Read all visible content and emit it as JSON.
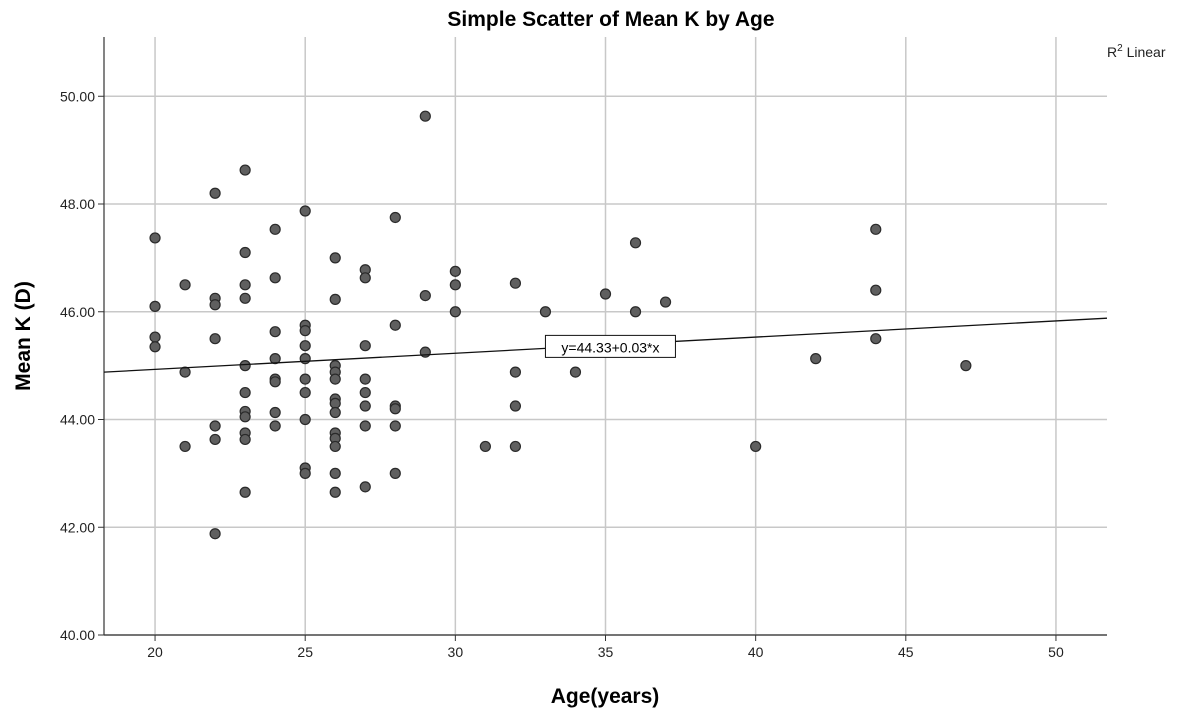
{
  "chart_data": {
    "type": "scatter",
    "title": "Simple Scatter of Mean K by Age",
    "xlabel": "Age(years)",
    "ylabel": "Mean K (D)",
    "xlim": [
      18.3,
      51.7
    ],
    "ylim": [
      40.0,
      51.1
    ],
    "x_ticks": [
      20,
      25,
      30,
      35,
      40,
      45,
      50
    ],
    "y_ticks": [
      "40.00",
      "42.00",
      "44.00",
      "46.00",
      "48.00",
      "50.00"
    ],
    "grid": true,
    "legend": {
      "label_main": "R",
      "label_sup": "2",
      "label_rest": " Linear",
      "placement": "top-right"
    },
    "fit_line": {
      "intercept": 44.33,
      "slope": 0.03,
      "label": "y=44.33+0.03*x",
      "label_x": 33.0
    },
    "point_color": "#5f5f5f",
    "points": [
      [
        20,
        47.37
      ],
      [
        20,
        46.1
      ],
      [
        20,
        45.53
      ],
      [
        20,
        45.35
      ],
      [
        21,
        46.5
      ],
      [
        21,
        44.88
      ],
      [
        21,
        43.5
      ],
      [
        22,
        48.2
      ],
      [
        22,
        46.25
      ],
      [
        22,
        46.13
      ],
      [
        22,
        45.5
      ],
      [
        22,
        43.88
      ],
      [
        22,
        43.63
      ],
      [
        22,
        41.88
      ],
      [
        23,
        48.63
      ],
      [
        23,
        47.1
      ],
      [
        23,
        46.5
      ],
      [
        23,
        46.25
      ],
      [
        23,
        45.0
      ],
      [
        23,
        44.5
      ],
      [
        23,
        44.15
      ],
      [
        23,
        44.05
      ],
      [
        23,
        43.75
      ],
      [
        23,
        43.63
      ],
      [
        23,
        42.65
      ],
      [
        24,
        47.53
      ],
      [
        24,
        46.63
      ],
      [
        24,
        45.63
      ],
      [
        24,
        45.13
      ],
      [
        24,
        44.75
      ],
      [
        24,
        44.7
      ],
      [
        24,
        44.13
      ],
      [
        24,
        43.88
      ],
      [
        25,
        47.87
      ],
      [
        25,
        45.75
      ],
      [
        25,
        45.65
      ],
      [
        25,
        45.37
      ],
      [
        25,
        45.13
      ],
      [
        25,
        44.75
      ],
      [
        25,
        44.5
      ],
      [
        25,
        44.0
      ],
      [
        25,
        43.1
      ],
      [
        25,
        43.0
      ],
      [
        26,
        47.0
      ],
      [
        26,
        46.23
      ],
      [
        26,
        45.0
      ],
      [
        26,
        44.88
      ],
      [
        26,
        44.75
      ],
      [
        26,
        44.38
      ],
      [
        26,
        44.3
      ],
      [
        26,
        44.13
      ],
      [
        26,
        43.75
      ],
      [
        26,
        43.65
      ],
      [
        26,
        43.5
      ],
      [
        26,
        43.0
      ],
      [
        26,
        42.65
      ],
      [
        27,
        46.78
      ],
      [
        27,
        46.63
      ],
      [
        27,
        45.37
      ],
      [
        27,
        44.75
      ],
      [
        27,
        44.5
      ],
      [
        27,
        44.25
      ],
      [
        27,
        43.88
      ],
      [
        27,
        42.75
      ],
      [
        28,
        47.75
      ],
      [
        28,
        45.75
      ],
      [
        28,
        44.25
      ],
      [
        28,
        44.2
      ],
      [
        28,
        43.88
      ],
      [
        28,
        43.0
      ],
      [
        29,
        49.63
      ],
      [
        29,
        46.3
      ],
      [
        29,
        45.25
      ],
      [
        30,
        46.75
      ],
      [
        30,
        46.5
      ],
      [
        30,
        46.0
      ],
      [
        31,
        43.5
      ],
      [
        32,
        46.53
      ],
      [
        32,
        44.88
      ],
      [
        32,
        44.25
      ],
      [
        32,
        43.5
      ],
      [
        33,
        46.0
      ],
      [
        34,
        44.88
      ],
      [
        35,
        46.33
      ],
      [
        36,
        47.28
      ],
      [
        36,
        46.0
      ],
      [
        37,
        46.18
      ],
      [
        40,
        43.5
      ],
      [
        42,
        45.13
      ],
      [
        44,
        47.53
      ],
      [
        44,
        46.4
      ],
      [
        44,
        45.5
      ],
      [
        47,
        45.0
      ]
    ]
  }
}
